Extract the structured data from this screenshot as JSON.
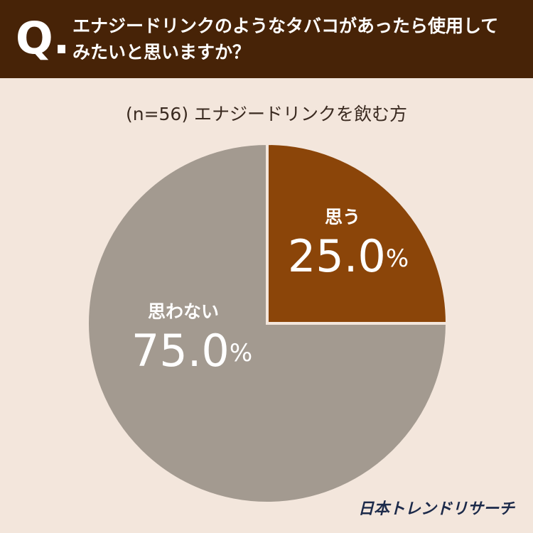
{
  "header": {
    "mark": "Q.",
    "question": "エナジードリンクのようなタバコがあったら使用してみたいと思いますか？"
  },
  "chart_data": {
    "type": "pie",
    "subtitle": "(n=56) エナジードリンクを飲む方",
    "categories": [
      "思う",
      "思わない"
    ],
    "values": [
      25.0,
      75.0
    ],
    "value_labels": [
      "25.0%",
      "75.0%"
    ],
    "colors": [
      "#8b4509",
      "#a39a90"
    ]
  },
  "footer": {
    "brand": "日本トレンドリサーチ"
  }
}
